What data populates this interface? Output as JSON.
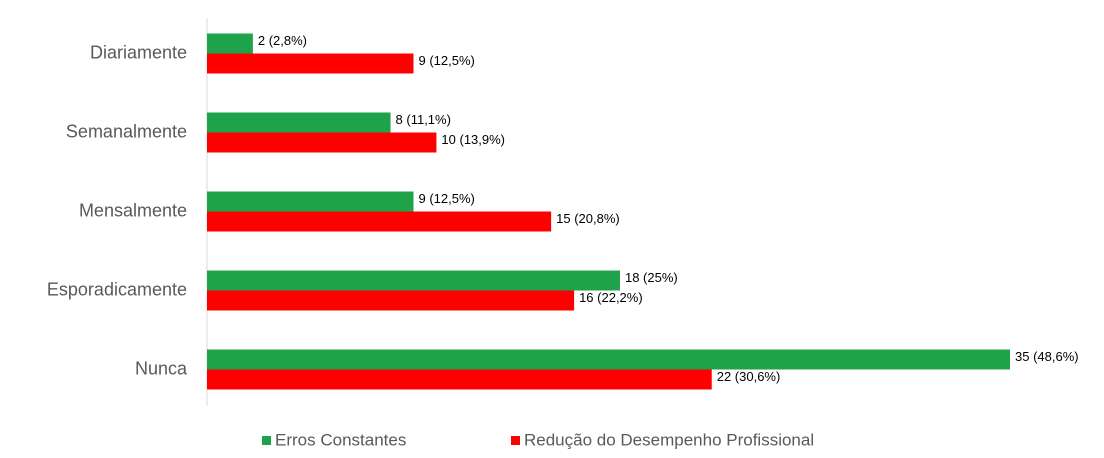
{
  "chart_data": {
    "type": "bar",
    "orientation": "horizontal",
    "categories": [
      "Diariamente",
      "Semanalmente",
      "Mensalmente",
      "Esporadicamente",
      "Nunca"
    ],
    "series": [
      {
        "name": "Erros Constantes",
        "color": "#1fa34a",
        "values": [
          2,
          8,
          9,
          18,
          35
        ],
        "value_labels": [
          "2 (2,8%)",
          "8 (11,1%)",
          "9 (12,5%)",
          "18 (25%)",
          "35 (48,6%)"
        ]
      },
      {
        "name": "Redução do Desempenho Profissional",
        "color": "#ff0000",
        "values": [
          9,
          10,
          15,
          16,
          22
        ],
        "value_labels": [
          "9 (12,5%)",
          "10 (13,9%)",
          "15 (20,8%)",
          "16 (22,2%)",
          "22 (30,6%)"
        ]
      }
    ],
    "legend": "bottom"
  }
}
